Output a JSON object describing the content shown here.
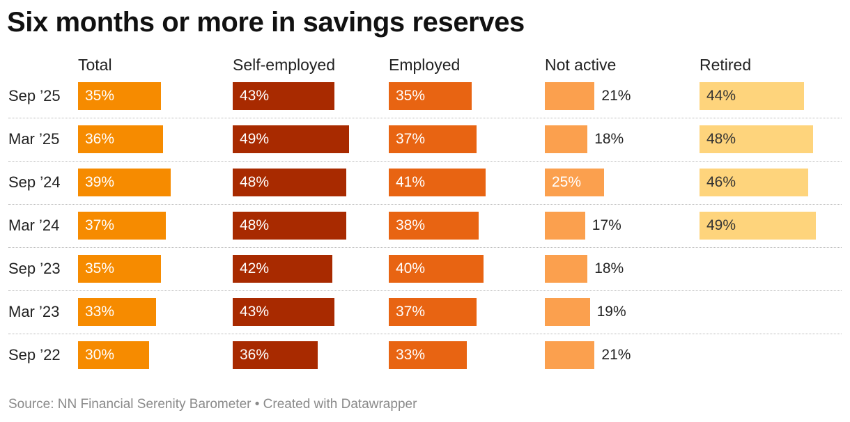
{
  "chart_data": {
    "type": "bar",
    "title": "Six months or more in savings reserves",
    "unit": "%",
    "categories": [
      "Sep ’25",
      "Mar ’25",
      "Sep ’24",
      "Mar ’24",
      "Sep ’23",
      "Mar ’23",
      "Sep ’22"
    ],
    "series": [
      {
        "name": "Total",
        "color": "#f68b00",
        "values": [
          35,
          36,
          39,
          37,
          35,
          33,
          30
        ]
      },
      {
        "name": "Self-employed",
        "color": "#a82a00",
        "values": [
          43,
          49,
          48,
          48,
          42,
          43,
          36
        ]
      },
      {
        "name": "Employed",
        "color": "#e86412",
        "values": [
          35,
          37,
          41,
          38,
          40,
          37,
          33
        ]
      },
      {
        "name": "Not active",
        "color": "#fba04e",
        "values": [
          21,
          18,
          25,
          17,
          18,
          19,
          21
        ]
      },
      {
        "name": "Retired",
        "color": "#fed47c",
        "values": [
          44,
          48,
          46,
          49,
          null,
          null,
          null
        ]
      }
    ],
    "source": "Source: NN Financial Serenity Barometer • Created with Datawrapper"
  }
}
